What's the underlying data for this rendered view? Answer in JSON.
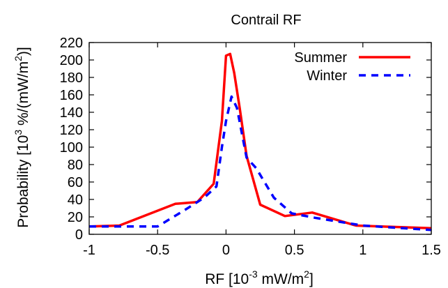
{
  "chart_data": {
    "type": "line",
    "title": "Contrail RF",
    "xlabel": {
      "base": "RF [10",
      "exp1": "-3",
      "mid": " mW/m",
      "exp2": "2",
      "end": "]"
    },
    "ylabel": {
      "base": "Probability [10",
      "exp1": "3",
      "mid": " %/(mW/m",
      "exp2": "2",
      "end": ")]"
    },
    "xlim": [
      -1,
      1.5
    ],
    "ylim": [
      0,
      220
    ],
    "xticks": [
      -1,
      -0.5,
      0,
      0.5,
      1,
      1.5
    ],
    "xtick_labels": [
      "-1",
      "-0.5",
      "0",
      "0.5",
      "1",
      "1.5"
    ],
    "yticks": [
      0,
      20,
      40,
      60,
      80,
      100,
      120,
      140,
      160,
      180,
      200,
      220
    ],
    "ytick_labels": [
      "0",
      "20",
      "40",
      "60",
      "80",
      "100",
      "120",
      "140",
      "160",
      "180",
      "200",
      "220"
    ],
    "grid": false,
    "legend_position": "top-right",
    "series": [
      {
        "name": "Summer",
        "color": "#ff0000",
        "style": "solid",
        "points": [
          [
            -1.0,
            9
          ],
          [
            -0.78,
            10
          ],
          [
            -0.37,
            35
          ],
          [
            -0.21,
            37
          ],
          [
            -0.09,
            58
          ],
          [
            -0.03,
            130
          ],
          [
            0.0,
            205
          ],
          [
            0.03,
            207
          ],
          [
            0.06,
            185
          ],
          [
            0.1,
            145
          ],
          [
            0.15,
            90
          ],
          [
            0.25,
            34
          ],
          [
            0.43,
            21
          ],
          [
            0.63,
            25
          ],
          [
            0.95,
            10
          ],
          [
            1.5,
            7
          ]
        ]
      },
      {
        "name": "Winter",
        "color": "#0000ff",
        "style": "dashed",
        "points": [
          [
            -1.0,
            9
          ],
          [
            -0.5,
            9
          ],
          [
            -0.3,
            28
          ],
          [
            -0.16,
            42
          ],
          [
            -0.07,
            55
          ],
          [
            -0.03,
            100
          ],
          [
            0.0,
            130
          ],
          [
            0.04,
            158
          ],
          [
            0.08,
            145
          ],
          [
            0.15,
            88
          ],
          [
            0.22,
            76
          ],
          [
            0.35,
            42
          ],
          [
            0.48,
            24
          ],
          [
            0.65,
            19
          ],
          [
            1.0,
            10
          ],
          [
            1.5,
            5
          ]
        ]
      }
    ]
  }
}
